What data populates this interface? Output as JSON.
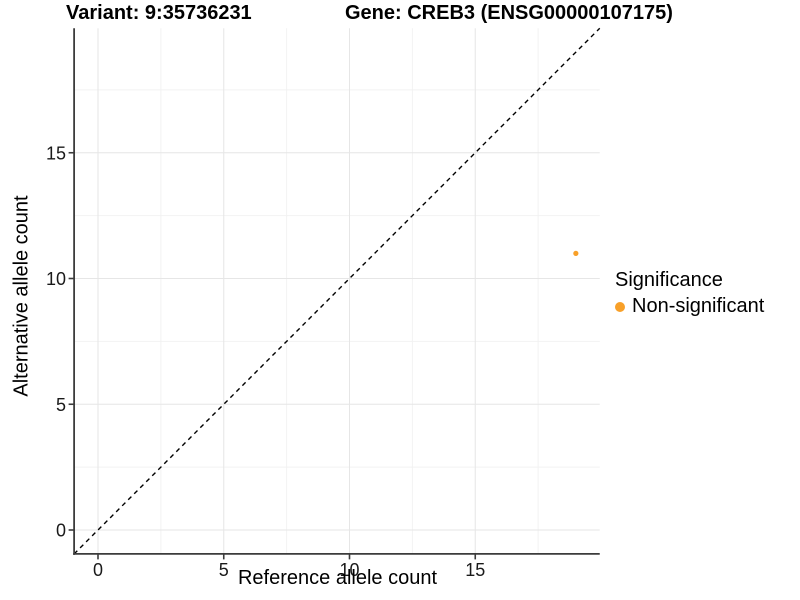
{
  "header": {
    "variant_title": "Variant: 9:35736231",
    "gene_title": "Gene: CREB3 (ENSG00000107175)"
  },
  "chart_data": {
    "type": "scatter",
    "title": "",
    "xlabel": "Reference allele count",
    "ylabel": "Alternative allele count",
    "xlim": [
      -0.95,
      19.95
    ],
    "ylim": [
      -0.95,
      19.95
    ],
    "x_ticks": [
      0,
      5,
      10,
      15
    ],
    "y_ticks": [
      0,
      5,
      10,
      15
    ],
    "x_minor_ticks": [
      2.5,
      7.5,
      12.5,
      17.5
    ],
    "y_minor_ticks": [
      2.5,
      7.5,
      12.5,
      17.5
    ],
    "grid": true,
    "identity_line": {
      "style": "dashed",
      "color": "#000000",
      "slope": 1,
      "intercept": 0
    },
    "series": [
      {
        "name": "Non-significant",
        "color": "#F8A029",
        "points": [
          {
            "x": 19,
            "y": 11
          }
        ]
      }
    ],
    "legend": {
      "title": "Significance",
      "position": "right",
      "items": [
        {
          "label": "Non-significant",
          "color": "#F8A029"
        }
      ]
    }
  },
  "colors": {
    "background": "#FFFFFF",
    "axis_line": "#3C3C3C",
    "grid_major": "#E6E6E6",
    "grid_minor": "#F2F2F2",
    "tick_text": "#1A1A1A"
  }
}
